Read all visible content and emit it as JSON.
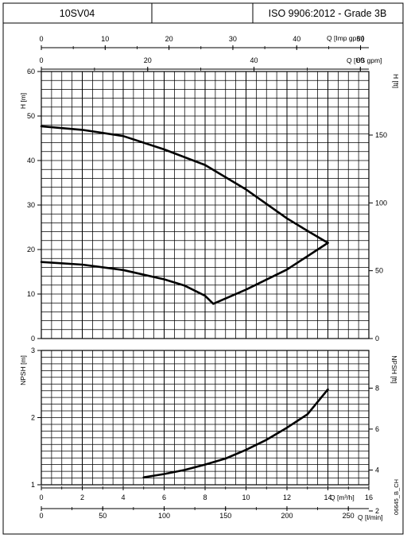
{
  "header": {
    "model": "10SV04",
    "standard": "ISO 9906:2012 - Grade 3B"
  },
  "side_code": "06645_B_CH",
  "chart_data": [
    {
      "type": "line",
      "name": "top-axes",
      "axes": [
        {
          "label": "Q [Imp gpm]",
          "range": [
            0,
            51.3
          ],
          "ticks": [
            0,
            10,
            20,
            30,
            40,
            50
          ]
        },
        {
          "label": "Q [US gpm]",
          "range": [
            0,
            61.6
          ],
          "ticks": [
            0,
            20,
            40,
            60
          ]
        }
      ]
    },
    {
      "type": "line",
      "name": "head-chart",
      "xlim": [
        0,
        16
      ],
      "ylim": [
        0,
        60
      ],
      "ylabel": "H [m]",
      "ylabel_right": "H [ft]",
      "yticks": [
        0,
        10,
        20,
        30,
        40,
        50,
        60
      ],
      "yticks_right": [
        0,
        50,
        100,
        150
      ],
      "ylim_right": [
        0,
        196.85
      ],
      "grid": true,
      "series": [
        {
          "x": [
            0,
            2,
            4,
            6,
            8,
            10,
            12,
            13,
            14
          ],
          "y": [
            47.7,
            46.9,
            45.5,
            42.5,
            39.0,
            33.5,
            27.0,
            24.2,
            21.5
          ]
        },
        {
          "x": [
            0,
            2,
            4,
            6,
            7,
            8,
            8.4,
            10,
            12,
            14
          ],
          "y": [
            17.2,
            16.6,
            15.4,
            13.3,
            11.9,
            9.6,
            7.8,
            11.0,
            15.5,
            21.5
          ]
        }
      ]
    },
    {
      "type": "line",
      "name": "npsh-chart",
      "xlim": [
        0,
        16
      ],
      "ylim": [
        1,
        3
      ],
      "ylabel": "NPSH [m]",
      "ylabel_right": "NPSH [ft]",
      "yticks": [
        1,
        2,
        3
      ],
      "yticks_right": [
        2,
        4,
        6,
        8
      ],
      "ylim_right": [
        3.28,
        9.84
      ],
      "grid": true,
      "series": [
        {
          "x": [
            5,
            6,
            7,
            8,
            9,
            10,
            11,
            12,
            13,
            14
          ],
          "y": [
            1.11,
            1.16,
            1.22,
            1.3,
            1.39,
            1.52,
            1.67,
            1.85,
            2.05,
            2.42
          ]
        }
      ]
    },
    {
      "type": "line",
      "name": "bottom-axes",
      "axes": [
        {
          "label": "Q [m³/h]",
          "range": [
            0,
            16
          ],
          "ticks": [
            0,
            2,
            4,
            6,
            8,
            10,
            12,
            14,
            16
          ]
        },
        {
          "label": "Q [l/min]",
          "range": [
            0,
            266.7
          ],
          "ticks": [
            0,
            50,
            100,
            150,
            200,
            250
          ]
        }
      ]
    }
  ]
}
